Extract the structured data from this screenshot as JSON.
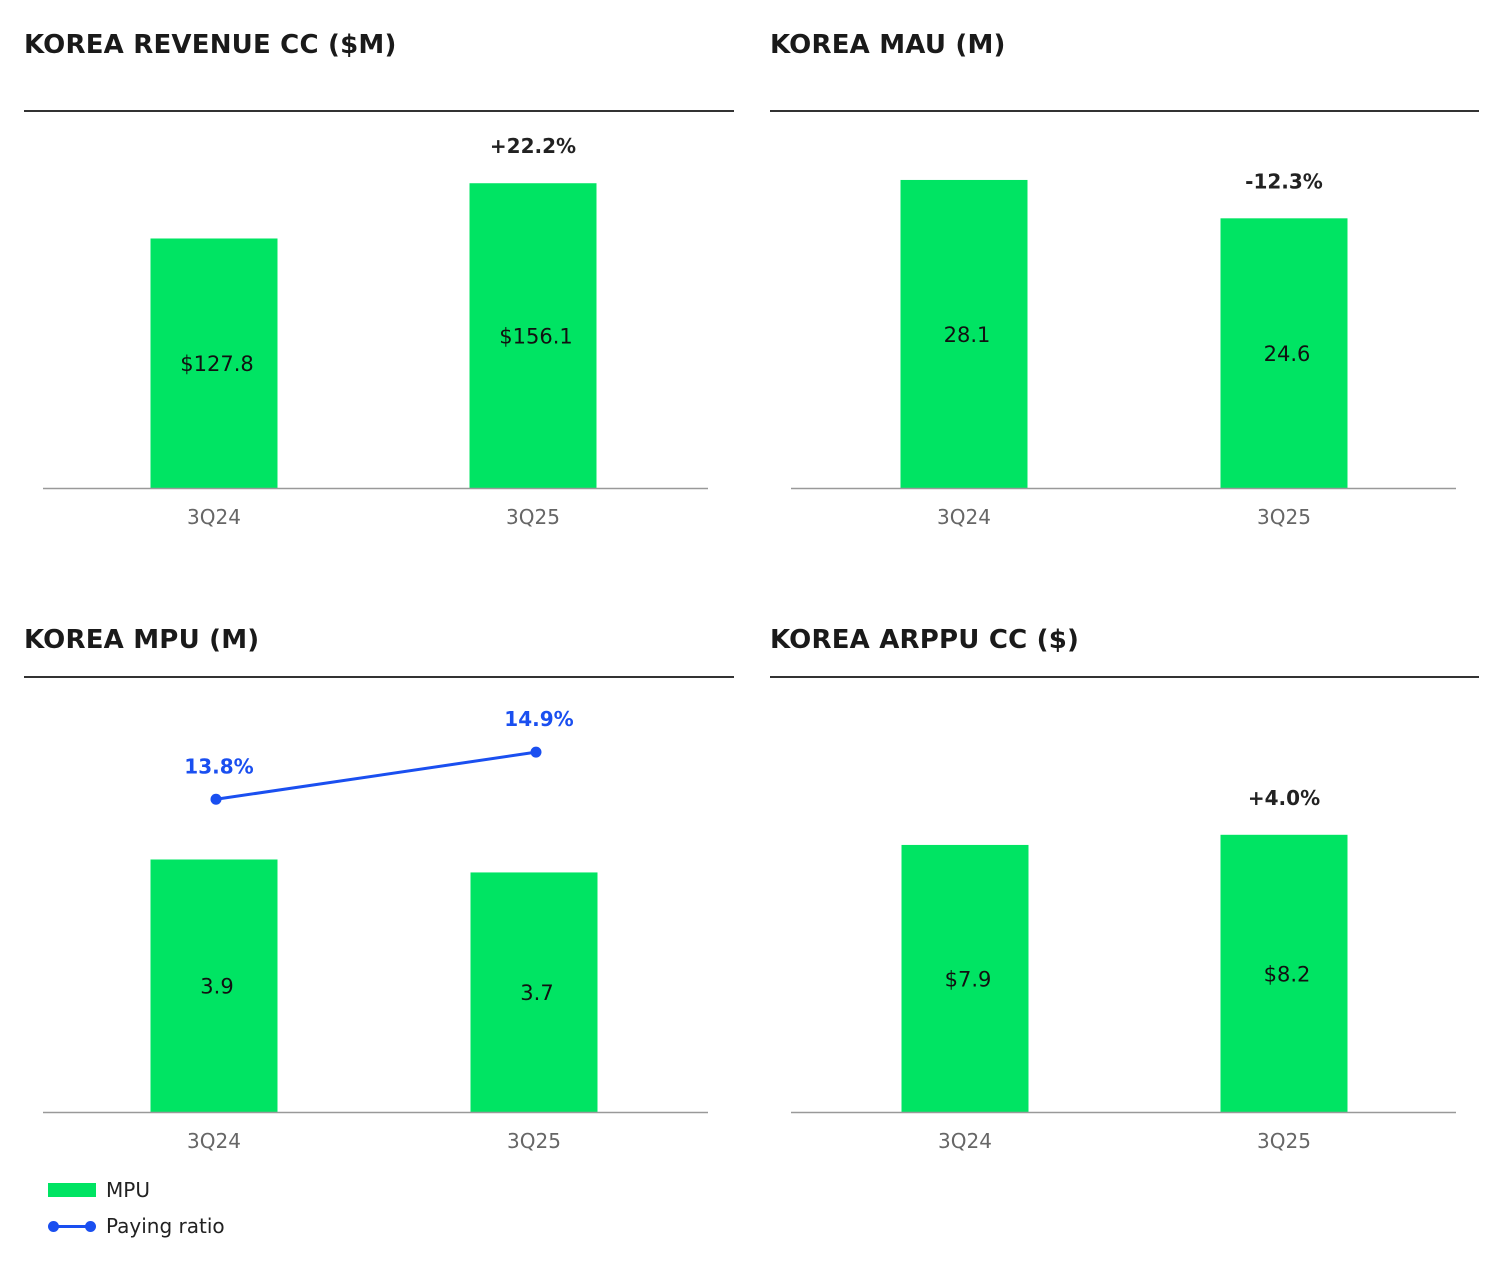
{
  "colors": {
    "bar": "#00e463",
    "line": "#1a4ff0",
    "axis": "#999999",
    "rule": "#333333"
  },
  "panels": [
    {
      "title": "KOREA REVENUE CC ($M)"
    },
    {
      "title": "KOREA MAU (M)"
    },
    {
      "title": "KOREA MPU (M)"
    },
    {
      "title": "KOREA ARPPU CC ($)"
    }
  ],
  "legend": {
    "bar_label": "MPU",
    "line_label": "Paying ratio"
  },
  "chart_data": [
    {
      "type": "bar",
      "title": "KOREA REVENUE CC ($M)",
      "categories": [
        "3Q24",
        "3Q25"
      ],
      "values": [
        127.8,
        156.1
      ],
      "value_labels": [
        "$127.8",
        "$156.1"
      ],
      "change_label": "+22.2%",
      "ylim": [
        0,
        210
      ]
    },
    {
      "type": "bar",
      "title": "KOREA MAU (M)",
      "categories": [
        "3Q24",
        "3Q25"
      ],
      "values": [
        28.1,
        24.6
      ],
      "value_labels": [
        "28.1",
        "24.6"
      ],
      "change_label": "-12.3%",
      "ylim": [
        0,
        37.4
      ]
    },
    {
      "type": "bar",
      "title": "KOREA MPU (M)",
      "categories": [
        "3Q24",
        "3Q25"
      ],
      "series": [
        {
          "name": "MPU",
          "type": "bar",
          "values": [
            3.9,
            3.7
          ],
          "value_labels": [
            "3.9",
            "3.7"
          ]
        },
        {
          "name": "Paying ratio",
          "type": "line",
          "values": [
            13.8,
            14.9
          ],
          "value_labels": [
            "13.8%",
            "14.9%"
          ]
        }
      ],
      "ylim": [
        0,
        5.9
      ]
    },
    {
      "type": "bar",
      "title": "KOREA ARPPU CC ($)",
      "categories": [
        "3Q24",
        "3Q25"
      ],
      "values": [
        7.9,
        8.2
      ],
      "value_labels": [
        "$7.9",
        "$8.2"
      ],
      "change_label": "+4.0%",
      "ylim": [
        0,
        11.3
      ]
    }
  ]
}
